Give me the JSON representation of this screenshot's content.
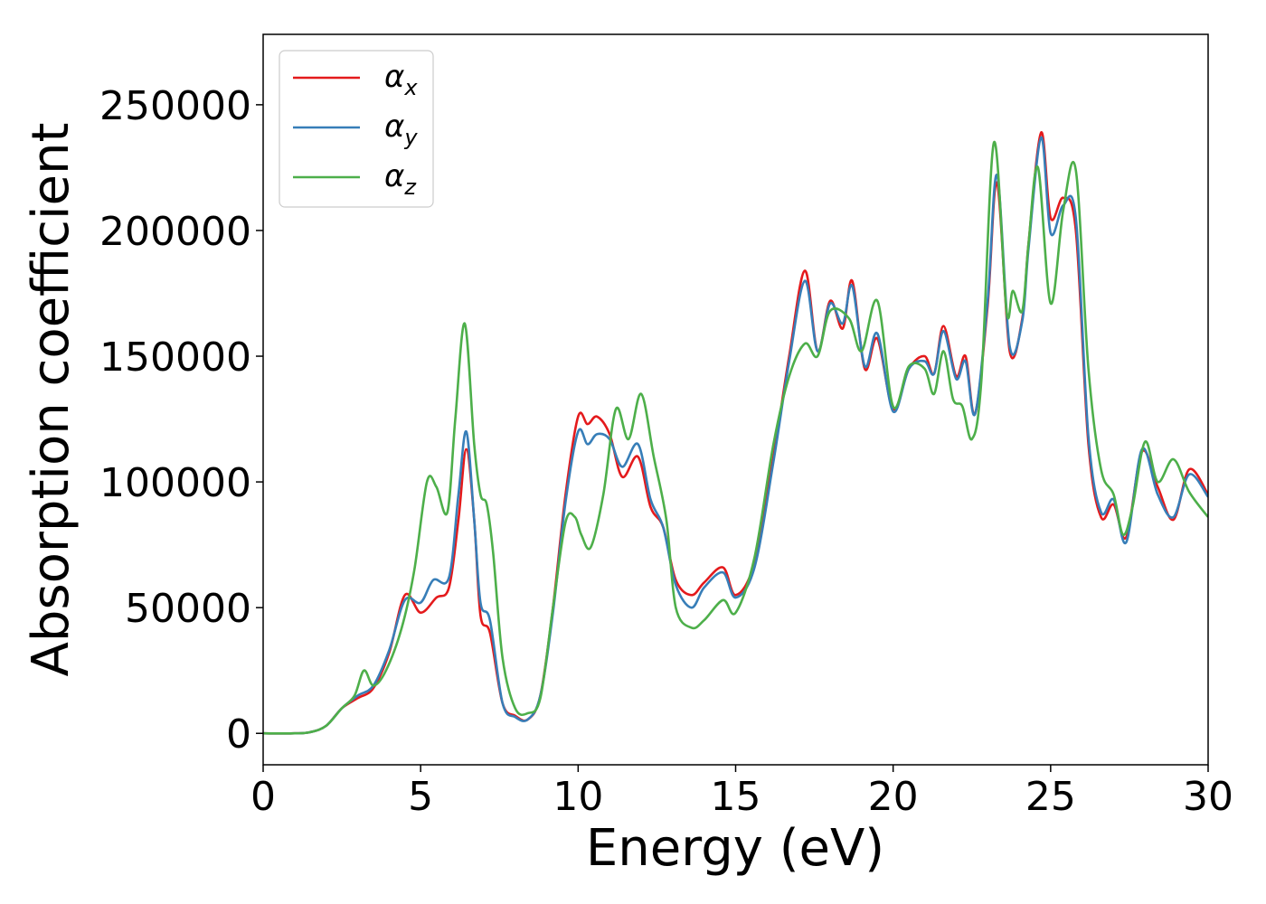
{
  "chart_data": {
    "type": "line",
    "xlabel": "Energy (eV)",
    "ylabel": "Absorption coefficient",
    "xlim": [
      0,
      30
    ],
    "ylim": [
      -12500,
      278000
    ],
    "xticks": [
      0,
      5,
      10,
      15,
      20,
      25,
      30
    ],
    "yticks": [
      0,
      50000,
      100000,
      150000,
      200000,
      250000
    ],
    "grid": false,
    "legend_position": "upper-left",
    "series": [
      {
        "name": "α",
        "subscript": "x",
        "color": "#e41a1c",
        "x": [
          0,
          1,
          1.5,
          2,
          2.5,
          3,
          3.5,
          4,
          4.5,
          5,
          5.5,
          5.9,
          6.2,
          6.45,
          6.7,
          6.9,
          7.2,
          7.6,
          8,
          8.4,
          8.8,
          9.2,
          9.6,
          10,
          10.3,
          10.6,
          11,
          11.4,
          11.9,
          12.3,
          12.7,
          13.1,
          13.6,
          14.0,
          14.6,
          15,
          15.6,
          16.2,
          16.7,
          17.2,
          17.6,
          18.0,
          18.4,
          18.7,
          19.1,
          19.5,
          20.0,
          20.5,
          21.0,
          21.3,
          21.6,
          22.0,
          22.3,
          22.6,
          23.0,
          23.3,
          23.7,
          24.1,
          24.3,
          24.7,
          25.0,
          25.4,
          25.8,
          26.2,
          26.6,
          27.0,
          27.4,
          27.9,
          28.4,
          28.9,
          29.4,
          30
        ],
        "y": [
          0,
          0,
          500,
          3000,
          10000,
          14000,
          18000,
          32000,
          55000,
          48000,
          54000,
          58000,
          85000,
          113000,
          85000,
          47000,
          40000,
          12000,
          7000,
          5500,
          15000,
          50000,
          95000,
          126000,
          123000,
          126000,
          119000,
          102000,
          110000,
          90000,
          82000,
          61000,
          55000,
          60000,
          66000,
          55000,
          68000,
          110000,
          150000,
          184000,
          152000,
          172000,
          161000,
          180000,
          145000,
          157000,
          129000,
          145000,
          150000,
          143000,
          162000,
          142000,
          150000,
          127000,
          170000,
          219000,
          152000,
          165000,
          195000,
          239000,
          205000,
          213000,
          200000,
          115000,
          86000,
          91000,
          78000,
          112000,
          98000,
          85000,
          105000,
          95000
        ]
      },
      {
        "name": "α",
        "subscript": "y",
        "color": "#377eb8",
        "x": [
          0,
          1,
          1.5,
          2,
          2.5,
          3,
          3.5,
          4,
          4.5,
          5,
          5.4,
          5.9,
          6.2,
          6.45,
          6.7,
          6.9,
          7.2,
          7.6,
          8,
          8.4,
          8.8,
          9.2,
          9.6,
          10,
          10.3,
          10.6,
          11,
          11.4,
          11.9,
          12.3,
          12.7,
          13.1,
          13.6,
          14.0,
          14.6,
          15,
          15.6,
          16.2,
          16.7,
          17.2,
          17.6,
          18.0,
          18.4,
          18.7,
          19.1,
          19.5,
          20.0,
          20.5,
          21.0,
          21.3,
          21.6,
          22.0,
          22.3,
          22.6,
          23.0,
          23.3,
          23.7,
          24.1,
          24.3,
          24.7,
          25.0,
          25.4,
          25.8,
          26.2,
          26.6,
          27.0,
          27.4,
          27.9,
          28.4,
          28.9,
          29.4,
          30
        ],
        "y": [
          0,
          0,
          500,
          3000,
          10000,
          15000,
          19000,
          33000,
          53000,
          52000,
          61000,
          62000,
          95000,
          120000,
          85000,
          52000,
          45000,
          12000,
          6500,
          5500,
          15000,
          48000,
          92000,
          120000,
          115000,
          119000,
          117000,
          106000,
          115000,
          93000,
          82000,
          59000,
          50000,
          58000,
          64000,
          54000,
          66000,
          108000,
          148000,
          180000,
          152000,
          171000,
          163000,
          178000,
          146000,
          159000,
          128000,
          145000,
          148000,
          143000,
          160000,
          141000,
          148000,
          127000,
          172000,
          222000,
          154000,
          164000,
          193000,
          237000,
          199000,
          210000,
          205000,
          118000,
          88000,
          93000,
          76000,
          113000,
          95000,
          86000,
          103000,
          94000
        ]
      },
      {
        "name": "α",
        "subscript": "z",
        "color": "#4daf4a",
        "x": [
          0,
          1,
          1.5,
          2,
          2.5,
          2.9,
          3.2,
          3.5,
          3.9,
          4.4,
          4.8,
          5.2,
          5.5,
          5.85,
          6.1,
          6.4,
          6.7,
          6.9,
          7.1,
          7.3,
          7.6,
          8,
          8.4,
          8.8,
          9.2,
          9.6,
          9.9,
          10.1,
          10.4,
          10.8,
          11.2,
          11.6,
          12.0,
          12.4,
          12.8,
          13.1,
          13.6,
          14.0,
          14.6,
          15,
          15.6,
          16.2,
          16.7,
          17.2,
          17.6,
          18.0,
          18.6,
          19.0,
          19.5,
          20.0,
          20.5,
          21.0,
          21.3,
          21.6,
          21.9,
          22.2,
          22.5,
          22.8,
          23.2,
          23.6,
          23.8,
          24.1,
          24.3,
          24.6,
          25.0,
          25.4,
          25.8,
          26.2,
          26.6,
          27.0,
          27.3,
          27.6,
          28.0,
          28.4,
          28.9,
          29.4,
          30
        ],
        "y": [
          0,
          0,
          500,
          3000,
          10000,
          15000,
          25000,
          19000,
          25000,
          42000,
          65000,
          100000,
          98000,
          88000,
          125000,
          163000,
          115000,
          95000,
          91000,
          72000,
          30000,
          10000,
          8000,
          14000,
          50000,
          84000,
          86000,
          79000,
          74000,
          95000,
          129000,
          117000,
          135000,
          110000,
          85000,
          50000,
          42000,
          45000,
          53000,
          48000,
          70000,
          115000,
          142000,
          155000,
          150000,
          168000,
          165000,
          152000,
          172000,
          130000,
          146000,
          145000,
          135000,
          152000,
          133000,
          130000,
          117000,
          140000,
          235000,
          168000,
          176000,
          168000,
          195000,
          225000,
          171000,
          208000,
          224000,
          145000,
          105000,
          95000,
          79000,
          90000,
          116000,
          100000,
          109000,
          96000,
          86000
        ]
      }
    ]
  }
}
